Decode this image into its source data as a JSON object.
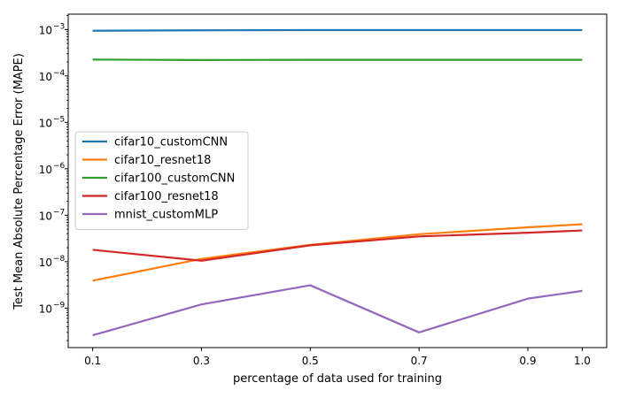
{
  "chart_data": {
    "type": "line",
    "xlabel": "percentage of data used for training",
    "ylabel": "Test Mean Absolute Percentage Error (MAPE)",
    "y_scale": "log",
    "xlim": [
      0.055,
      1.045
    ],
    "ylim_log10": [
      -9.85,
      -2.67
    ],
    "x_ticks": [
      0.1,
      0.3,
      0.5,
      0.7,
      0.9,
      1.0
    ],
    "x_tick_labels": [
      "0.1",
      "0.3",
      "0.5",
      "0.7",
      "0.9",
      "1.0"
    ],
    "y_ticks": [
      {
        "exp": -3,
        "base": "10",
        "sup": "−3"
      },
      {
        "exp": -4,
        "base": "10",
        "sup": "−4"
      },
      {
        "exp": -5,
        "base": "10",
        "sup": "−5"
      },
      {
        "exp": -6,
        "base": "10",
        "sup": "−6"
      },
      {
        "exp": -7,
        "base": "10",
        "sup": "−7"
      },
      {
        "exp": -8,
        "base": "10",
        "sup": "−8"
      },
      {
        "exp": -9,
        "base": "10",
        "sup": "−9"
      }
    ],
    "grid": false,
    "legend_position": "center-left",
    "x": [
      0.1,
      0.3,
      0.5,
      0.7,
      0.9,
      1.0
    ],
    "series": [
      {
        "name": "cifar10_customCNN",
        "color": "#1f77b4",
        "values": [
          0.00094,
          0.00096,
          0.00097,
          0.00097,
          0.00097,
          0.00097
        ]
      },
      {
        "name": "cifar10_resnet18",
        "color": "#ff7f0e",
        "values": [
          3.9e-09,
          1.15e-08,
          2.3e-08,
          3.9e-08,
          5.5e-08,
          6.4e-08
        ]
      },
      {
        "name": "cifar100_customCNN",
        "color": "#2ca02c",
        "values": [
          0.000225,
          0.00022,
          0.000222,
          0.000222,
          0.000222,
          0.000222
        ]
      },
      {
        "name": "cifar100_resnet18",
        "color": "#d62728",
        "values": [
          1.8e-08,
          1.05e-08,
          2.25e-08,
          3.5e-08,
          4.2e-08,
          4.7e-08
        ]
      },
      {
        "name": "mnist_customMLP",
        "color": "#9467bd",
        "values": [
          2.6e-10,
          1.2e-09,
          3.1e-09,
          3e-10,
          1.6e-09,
          2.35e-09
        ]
      }
    ]
  }
}
